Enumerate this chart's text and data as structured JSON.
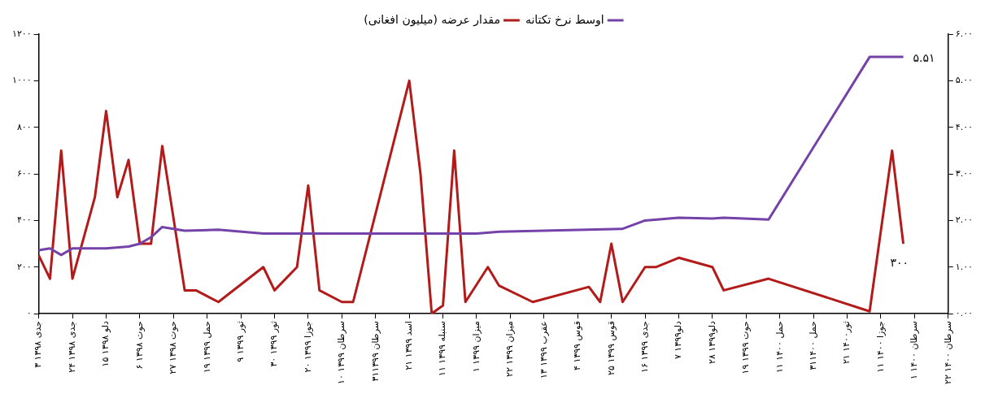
{
  "chart_data": {
    "type": "line",
    "legend": "top",
    "grid": false,
    "categories": [
      "۳ جدی ۱۳۹۸",
      null,
      null,
      "۲۴ جدی ۱۳۹۸",
      null,
      null,
      "۱۵ دلو ۱۳۹۸",
      null,
      null,
      "۶ حوت ۱۳۹۸",
      null,
      null,
      "۲۷ حوت ۱۳۹۸",
      null,
      null,
      "۱۹ حمل ۱۳۹۹",
      null,
      null,
      "۹ ثور ۱۳۹۹",
      null,
      null,
      "۳۰ ثور ۱۳۹۹",
      null,
      null,
      "۲۰ جوزا ۱۳۹۹",
      null,
      null,
      "۱۰ سرطان ۱۳۹۹",
      null,
      null,
      "۳۱سرطان ۱۳۹۹",
      null,
      null,
      "۲۱ اسد ۱۳۹۹",
      null,
      null,
      "۱۱ سنبله ۱۳۹۹",
      null,
      null,
      "۱ میزان ۱۳۹۹",
      null,
      null,
      "۲۲ میزان ۱۳۹۹",
      null,
      null,
      "۱۳ عقرب ۱۳۹۹",
      null,
      null,
      "۴ قوس ۱۳۹۹",
      null,
      null,
      "۲۵ قوس ۱۳۹۹",
      null,
      null,
      "۱۶ جدی ۱۳۹۹",
      null,
      null,
      "۷ دلو۱۳۹۹",
      null,
      null,
      "۲۸ دلو۱۳۹۹",
      null,
      null,
      "۱۹ حوت ۱۳۹۹",
      null,
      null,
      "۱۱ حمل ۱۴۰۰",
      null,
      null,
      "۳۱حمل ۱۴۰۰",
      null,
      null,
      "۲۱ ثور۱۴۰۰",
      null,
      null,
      "۱۱ جوزا ۱۴۰۰",
      null,
      null,
      "۱ سرطان ۱۴۰۰",
      null,
      null,
      "۲۲ سرطان ۱۴۰۰"
    ],
    "ylim": [
      0,
      1200
    ],
    "yticks": [
      {
        "value": 0,
        "label": "۰"
      },
      {
        "value": 200,
        "label": "۲۰۰"
      },
      {
        "value": 400,
        "label": "۴۰۰"
      },
      {
        "value": 600,
        "label": "۶۰۰"
      },
      {
        "value": 800,
        "label": "۸۰۰"
      },
      {
        "value": 1000,
        "label": "۱۰۰۰"
      },
      {
        "value": 1200,
        "label": "۱۲۰۰"
      }
    ],
    "y2lim": [
      0,
      6
    ],
    "y2ticks": [
      {
        "value": 0,
        "label": "۰.۰۰"
      },
      {
        "value": 1,
        "label": "۱.۰۰"
      },
      {
        "value": 2,
        "label": "۲.۰۰"
      },
      {
        "value": 3,
        "label": "۳.۰۰"
      },
      {
        "value": 4,
        "label": "۴.۰۰"
      },
      {
        "value": 5,
        "label": "۵.۰۰"
      },
      {
        "value": 6,
        "label": "۶.۰۰"
      }
    ],
    "series": [
      {
        "name": "اوسط نرخ تکتانه",
        "axis": "y2",
        "color": "#7442a8",
        "values": [
          1.36,
          1.4,
          1.26,
          1.4,
          null,
          null,
          1.4,
          null,
          1.44,
          1.5,
          1.64,
          1.86,
          null,
          1.78,
          null,
          null,
          1.8,
          null,
          null,
          null,
          1.72,
          null,
          null,
          null,
          null,
          1.72,
          null,
          null,
          null,
          null,
          null,
          null,
          null,
          null,
          null,
          null,
          null,
          null,
          null,
          1.72,
          null,
          1.76,
          null,
          null,
          null,
          null,
          null,
          null,
          null,
          null,
          null,
          null,
          1.82,
          null,
          2.0,
          null,
          null,
          2.06,
          null,
          null,
          2.04,
          2.06,
          null,
          null,
          null,
          2.02,
          null,
          null,
          null,
          null,
          null,
          null,
          null,
          null,
          5.51,
          null,
          null,
          5.51,
          null,
          null,
          null,
          null
        ],
        "value_labels": [
          null,
          null,
          null,
          null,
          null,
          null,
          null,
          null,
          null,
          null,
          null,
          null,
          null,
          null,
          null,
          null,
          null,
          null,
          null,
          null,
          null,
          null,
          null,
          null,
          null,
          null,
          null,
          null,
          null,
          null,
          null,
          null,
          null,
          null,
          null,
          null,
          null,
          null,
          null,
          null,
          null,
          null,
          null,
          null,
          null,
          null,
          null,
          null,
          null,
          null,
          null,
          null,
          null,
          null,
          null,
          null,
          null,
          null,
          null,
          null,
          null,
          null,
          null,
          null,
          null,
          null,
          null,
          null,
          null,
          null,
          null,
          null,
          null,
          null,
          null,
          null,
          null,
          "۵.۵۱",
          null,
          null,
          null,
          null
        ]
      },
      {
        "name": "مقدار عرضه (میلیون افغانی)",
        "axis": "y",
        "color": "#b31b1b",
        "values": [
          250,
          150,
          700,
          150,
          null,
          500,
          870,
          500,
          660,
          300,
          300,
          720,
          null,
          100,
          100,
          null,
          50,
          null,
          null,
          null,
          200,
          100,
          null,
          200,
          550,
          100,
          null,
          50,
          50,
          null,
          null,
          null,
          null,
          1000,
          600,
          0,
          35,
          700,
          50,
          null,
          200,
          120,
          null,
          null,
          50,
          null,
          null,
          null,
          null,
          115,
          50,
          300,
          50,
          null,
          200,
          200,
          null,
          240,
          null,
          null,
          200,
          100,
          null,
          null,
          null,
          150,
          null,
          null,
          null,
          null,
          null,
          null,
          null,
          null,
          10,
          null,
          700,
          300,
          null,
          null,
          null,
          null
        ],
        "value_labels": [
          null,
          null,
          null,
          null,
          null,
          null,
          null,
          null,
          null,
          null,
          null,
          null,
          null,
          null,
          null,
          null,
          null,
          null,
          null,
          null,
          null,
          null,
          null,
          null,
          null,
          null,
          null,
          null,
          null,
          null,
          null,
          null,
          null,
          null,
          null,
          null,
          null,
          null,
          null,
          null,
          null,
          null,
          null,
          null,
          null,
          null,
          null,
          null,
          null,
          null,
          null,
          null,
          null,
          null,
          null,
          null,
          null,
          null,
          null,
          null,
          null,
          null,
          null,
          null,
          null,
          null,
          null,
          null,
          null,
          null,
          null,
          null,
          null,
          null,
          null,
          null,
          null,
          "۳۰۰",
          null,
          null,
          null,
          null
        ]
      }
    ]
  }
}
